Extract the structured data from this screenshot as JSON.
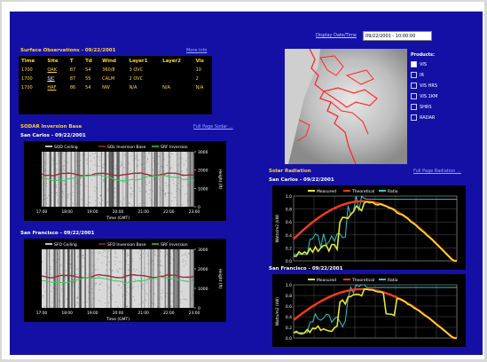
{
  "surface": {
    "title": "Surface Observations - 09/22/2001",
    "link": "More info",
    "columns": [
      "Time",
      "Site",
      "T",
      "Td",
      "Wind",
      "Layer1",
      "Layer2",
      "Vis"
    ],
    "rows": [
      [
        "1700",
        "OAK",
        "87",
        "54",
        "360/8",
        "3 OVC",
        "",
        "10"
      ],
      [
        "1700",
        "SJC",
        "87",
        "55",
        "CALM",
        "2 OVC",
        "",
        "2"
      ],
      [
        "1700",
        "HAF",
        "86",
        "54",
        "NW",
        "N/A",
        "N/A",
        "N/A"
      ]
    ]
  },
  "date_range": {
    "label": "Display Date/Time",
    "value": "09/22/2001 - 10:00:00"
  },
  "sodar": {
    "title": "SODAR Inversion Base",
    "link": "Full Page Sodar ...",
    "san_carlos": {
      "subtitle": "San Carlos - 09/22/2001",
      "legend": [
        "SOD Ceiling",
        "SOL Inversion Base",
        "SRF Inversion"
      ],
      "ylabel": "Height (ft)",
      "xlabel": "Time (GMT)",
      "yticks": [
        "3000",
        "2000",
        "1000",
        "0"
      ],
      "xticks": [
        "17:00",
        "18:00",
        "19:00",
        "20:00",
        "21:00",
        "22:00",
        "23:00"
      ]
    },
    "san_francisco": {
      "subtitle": "San Francisco - 09/22/2001",
      "legend": [
        "SFO Ceiling",
        "SFO Inversion Base",
        "SRF Inversion"
      ],
      "ylabel": "Height (ft)",
      "xlabel": "Time (GMT)",
      "yticks": [
        "3000",
        "2000",
        "1000",
        "0"
      ],
      "xticks": [
        "17:00",
        "18:00",
        "19:00",
        "20:00",
        "21:00",
        "22:00",
        "23:00"
      ]
    }
  },
  "map_options": {
    "label": "Products:",
    "items": [
      "VIS",
      "IR",
      "VIS HRS",
      "VIS 1KM",
      "SHRS",
      "RADAR"
    ],
    "selected_index": 0
  },
  "solar": {
    "title": "Solar Radiation",
    "link": "Full Page Radiation ...",
    "san_carlos": {
      "subtitle": "San Carlos - 09/22/2001",
      "legend": [
        "Measured",
        "Theoretical",
        "Ratio"
      ],
      "ylabel": "Watts/m2 (kW)",
      "yticks": [
        "1.0",
        "0.8",
        "0.6",
        "0.4",
        "0.2",
        "0.0"
      ]
    },
    "san_francisco": {
      "subtitle": "San Francisco - 09/22/2001",
      "legend": [
        "Measured",
        "Theoretical",
        "Ratio"
      ],
      "ylabel": "Watts/m2 (kW)",
      "yticks": [
        "1.0",
        "0.8",
        "0.6",
        "0.4",
        "0.2",
        "0.0"
      ]
    }
  },
  "colors": {
    "background": "#1410a6",
    "heading": "#ffd23a",
    "measured": "#e8e829",
    "theoretical": "#ff3a1a",
    "ratio": "#2fc8c8",
    "inversion": "#9b2a3a",
    "ceiling": "#39c95a",
    "coast": "#ff2a2a"
  }
}
